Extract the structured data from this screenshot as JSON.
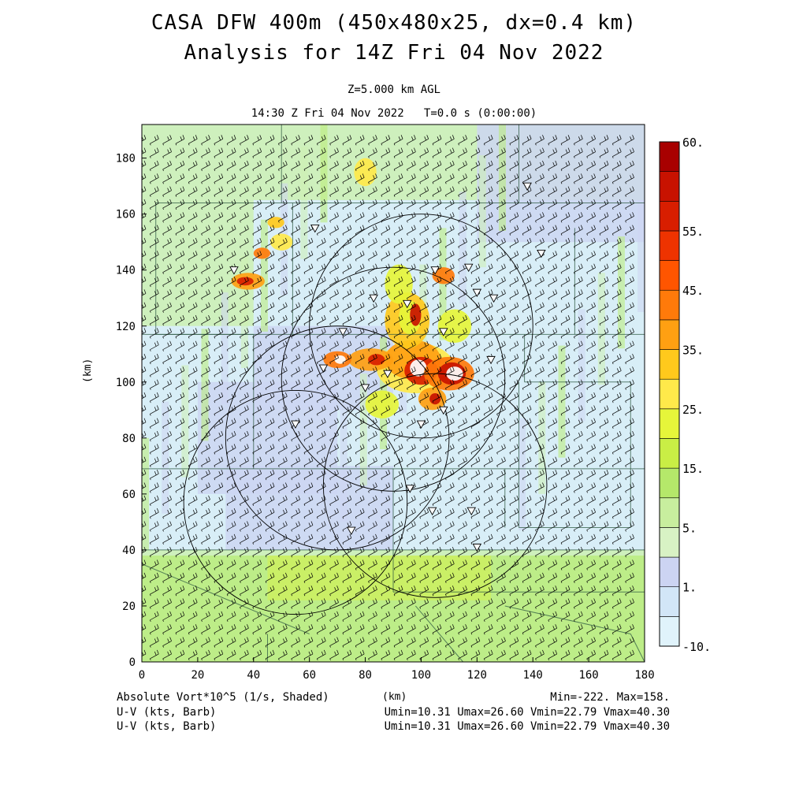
{
  "title_line1": "CASA DFW 400m (450x480x25, dx=0.4 km)",
  "title_line2": "Analysis for 14Z Fri 04 Nov 2022",
  "subtitle_level": "Z=5.000 km AGL",
  "subtitle_time": "14:30 Z Fri 04 Nov 2022   T=0.0 s (0:00:00)",
  "footer": {
    "field_label": "Absolute Vort*10^5 (1/s, Shaded)",
    "x_unit": "(km)",
    "minmax": "Min=-222. Max=158.",
    "wind1_label": "U-V (kts, Barb)",
    "wind1_stats": "Umin=10.31 Umax=26.60 Vmin=22.79 Vmax=40.30",
    "wind2_label": "U-V (kts, Barb)",
    "wind2_stats": "Umin=10.31 Umax=26.60 Vmin=22.79 Vmax=40.30"
  },
  "colors": {
    "bg_light_blue": "#d8eef7",
    "bg_lavender": "#cdd6f2",
    "bg_light_green": "#cdf0b3",
    "bg_green": "#b9ec74",
    "bg_yellow_green": "#d9f23f",
    "county_lines": "#2f5a43",
    "radar_circles": "#000000",
    "barbs": "#000000"
  },
  "chart_data": {
    "type": "heatmap",
    "title": "CASA DFW 400m (450x480x25, dx=0.4 km) Analysis for 14Z Fri 04 Nov 2022",
    "xlabel": "(km)",
    "ylabel": "(km)",
    "xlim": [
      0,
      180
    ],
    "ylim": [
      0,
      192
    ],
    "xticks": [
      0,
      20,
      40,
      60,
      80,
      100,
      120,
      140,
      160,
      180
    ],
    "yticks": [
      0,
      20,
      40,
      60,
      80,
      100,
      120,
      140,
      160,
      180
    ],
    "field": "Absolute Vort*10^5 (1/s, Shaded)",
    "min": -222,
    "max": 158,
    "colorbar": {
      "levels": [
        -10,
        1,
        5,
        15,
        25,
        35,
        45,
        55,
        60
      ],
      "tick_labels": [
        "-10.",
        "1.",
        "5.",
        "15.",
        "25.",
        "35.",
        "45.",
        "55.",
        "60."
      ],
      "colors": [
        "#e0f3fb",
        "#d2e6f7",
        "#ccd4f2",
        "#d8f2c4",
        "#c8ee9e",
        "#b5e86a",
        "#c9ee45",
        "#e6f53a",
        "#ffe94a",
        "#ffc91c",
        "#ffa012",
        "#ff7a0a",
        "#ff5500",
        "#ee3300",
        "#d81e00",
        "#c81200",
        "#a80000"
      ]
    },
    "radar_sites_km": [
      {
        "x": 100,
        "y": 120
      },
      {
        "x": 90,
        "y": 101
      },
      {
        "x": 70,
        "y": 80
      },
      {
        "x": 105,
        "y": 63
      },
      {
        "x": 55,
        "y": 57
      }
    ],
    "radar_range_km": 40,
    "wind_barbs": {
      "u_min": 10.31,
      "u_max": 26.6,
      "v_min": 22.79,
      "v_max": 40.3,
      "units": "kts"
    }
  }
}
